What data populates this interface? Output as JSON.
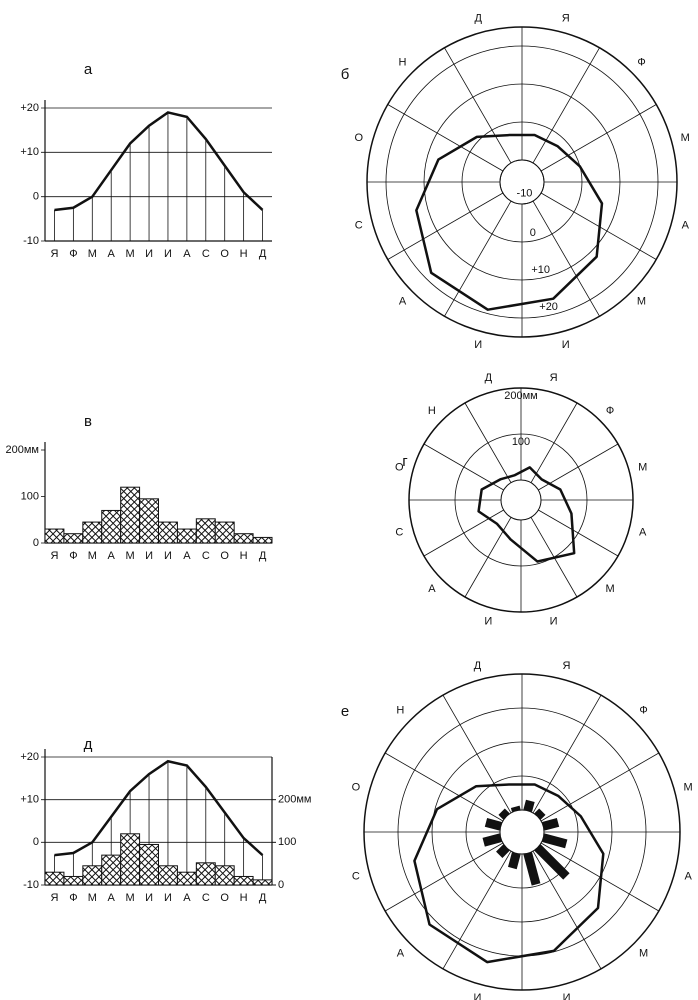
{
  "chart_data": [
    {
      "type": "line",
      "label": "а",
      "categories": [
        "Я",
        "Ф",
        "М",
        "А",
        "М",
        "И",
        "И",
        "А",
        "С",
        "О",
        "Н",
        "Д"
      ],
      "values": [
        -3,
        -2.5,
        0,
        6,
        12,
        16,
        19,
        18,
        13,
        7,
        1,
        -3
      ],
      "color": "#111",
      "ylim": [
        -10,
        20
      ],
      "yticks": [
        -10,
        0,
        {
          "value": 10,
          "label": "+10"
        },
        {
          "value": 20,
          "label": "+20"
        }
      ],
      "grid": true
    },
    {
      "type": "polar_line",
      "label": "б",
      "categories": [
        "Я",
        "Ф",
        "М",
        "А",
        "М",
        "И",
        "И",
        "А",
        "С",
        "О",
        "Н",
        "Д"
      ],
      "values": [
        -3,
        -2.5,
        0,
        6,
        12,
        16,
        19,
        18,
        13,
        7,
        1,
        -3
      ],
      "color": "#111",
      "rlim": [
        -10,
        25
      ],
      "rticks": [
        -10,
        0,
        {
          "value": 10,
          "label": "+10"
        },
        {
          "value": 20,
          "label": "+20"
        }
      ]
    },
    {
      "type": "bar",
      "label": "в",
      "categories": [
        "Я",
        "Ф",
        "М",
        "А",
        "М",
        "И",
        "И",
        "А",
        "С",
        "О",
        "Н",
        "Д"
      ],
      "values": [
        30,
        20,
        45,
        70,
        120,
        95,
        45,
        30,
        52,
        45,
        20,
        12
      ],
      "ylim": [
        0,
        200
      ],
      "yticks": [
        0,
        100,
        {
          "value": 200,
          "label": "200мм"
        }
      ]
    },
    {
      "type": "polar_bar",
      "label": "г",
      "categories": [
        "Я",
        "Ф",
        "М",
        "А",
        "М",
        "И",
        "И",
        "А",
        "С",
        "О",
        "Н",
        "Д"
      ],
      "values": [
        30,
        20,
        45,
        70,
        120,
        95,
        45,
        30,
        52,
        45,
        20,
        12
      ],
      "color": "#111",
      "rlim": [
        0,
        200
      ],
      "rticks": [
        100,
        {
          "value": 200,
          "label": "200мм"
        }
      ]
    },
    {
      "type": "combo",
      "label": "д",
      "categories": [
        "Я",
        "Ф",
        "М",
        "А",
        "М",
        "И",
        "И",
        "А",
        "С",
        "О",
        "Н",
        "Д"
      ],
      "series": [
        {
          "type": "line",
          "color": "#111",
          "values": [
            -3,
            -2.5,
            0,
            6,
            12,
            16,
            19,
            18,
            13,
            7,
            1,
            -3
          ]
        },
        {
          "type": "bar",
          "axis": "y2",
          "values": [
            30,
            20,
            45,
            70,
            120,
            95,
            45,
            30,
            52,
            45,
            20,
            12
          ]
        }
      ],
      "ylim": [
        -10,
        20
      ],
      "yticks": [
        -10,
        0,
        {
          "value": 10,
          "label": "+10"
        },
        {
          "value": 20,
          "label": "+20"
        }
      ],
      "y2lim": [
        0,
        300
      ],
      "y2ticks": [
        0,
        100,
        {
          "value": 200,
          "label": "200мм"
        }
      ],
      "grid": true
    },
    {
      "type": "polar_combo",
      "label": "е",
      "categories": [
        "Я",
        "Ф",
        "М",
        "А",
        "М",
        "И",
        "И",
        "А",
        "С",
        "О",
        "Н",
        "Д"
      ],
      "series": [
        {
          "type": "line",
          "color": "#111",
          "values": [
            -3,
            -2.5,
            0,
            6,
            12,
            16,
            19,
            18,
            13,
            7,
            1,
            -3
          ]
        },
        {
          "type": "bar",
          "axis": "r2",
          "color": "#111",
          "values": [
            30,
            20,
            45,
            70,
            120,
            95,
            45,
            30,
            52,
            45,
            20,
            12
          ]
        }
      ],
      "rlim": [
        -10,
        25
      ],
      "r2lim": [
        0,
        400
      ]
    }
  ]
}
